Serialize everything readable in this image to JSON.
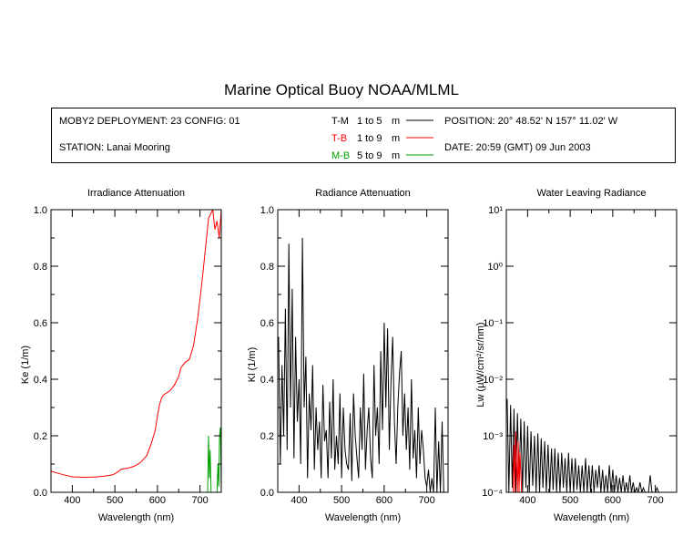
{
  "title": "Marine Optical Buoy NOAA/MLML",
  "info": {
    "deployment": "MOBY2 DEPLOYMENT: 23 CONFIG: 01",
    "station": "STATION: Lanai Mooring",
    "position": "POSITION: 20° 48.52' N   157° 11.02' W",
    "date": "DATE: 20:59 (GMT) 09 Jun 2003"
  },
  "legend": [
    {
      "code": "T-M",
      "range": "1 to 5",
      "unit": "m",
      "color": "#000000"
    },
    {
      "code": "T-B",
      "range": "1 to 9",
      "unit": "m",
      "color": "#ff0000"
    },
    {
      "code": "M-B",
      "range": "5 to 9",
      "unit": "m",
      "color": "#00a000"
    }
  ],
  "chart_data": [
    {
      "type": "line",
      "title": "Irradiance Attenuation",
      "xlabel": "Wavelength (nm)",
      "ylabel": "Ke  (1/m)",
      "xlim": [
        350,
        750
      ],
      "ylim": [
        0,
        1.0
      ],
      "xticks": [
        400,
        500,
        600,
        700
      ],
      "yticks": [
        0.0,
        0.2,
        0.4,
        0.6,
        0.8,
        1.0
      ],
      "ytick_labels": [
        "0.0",
        "0.2",
        "0.4",
        "0.6",
        "0.8",
        "1.0"
      ],
      "series": [
        {
          "name": "T-B",
          "color": "#ff0000",
          "x": [
            350,
            360,
            380,
            400,
            430,
            460,
            480,
            495,
            505,
            515,
            530,
            545,
            560,
            575,
            585,
            595,
            600,
            605,
            610,
            615,
            620,
            630,
            640,
            650,
            655,
            665,
            675,
            685,
            695,
            705,
            712,
            720,
            730,
            735,
            740,
            745,
            750
          ],
          "y": [
            0.075,
            0.07,
            0.062,
            0.055,
            0.053,
            0.055,
            0.058,
            0.062,
            0.07,
            0.082,
            0.085,
            0.092,
            0.105,
            0.13,
            0.17,
            0.22,
            0.27,
            0.31,
            0.335,
            0.345,
            0.35,
            0.36,
            0.38,
            0.41,
            0.44,
            0.46,
            0.47,
            0.52,
            0.62,
            0.75,
            0.85,
            0.97,
            1.0,
            0.93,
            0.96,
            0.9,
            1.0
          ]
        },
        {
          "name": "M-B",
          "color": "#00a000",
          "x": [
            718,
            720,
            722,
            724,
            726,
            740,
            742,
            744,
            746,
            748,
            750
          ],
          "y": [
            0.0,
            0.2,
            0.05,
            0.15,
            0.0,
            0.0,
            0.1,
            0.02,
            0.2,
            0.23,
            0.0
          ]
        }
      ]
    },
    {
      "type": "line",
      "title": "Radiance Attenuation",
      "xlabel": "Wavelength (nm)",
      "ylabel": "Kl  (1/m)",
      "xlim": [
        350,
        750
      ],
      "ylim": [
        0,
        1.0
      ],
      "xticks": [
        400,
        500,
        600,
        700
      ],
      "yticks": [
        0.0,
        0.2,
        0.4,
        0.6,
        0.8,
        1.0
      ],
      "ytick_labels": [
        "0.0",
        "0.2",
        "0.4",
        "0.6",
        "0.8",
        "1.0"
      ],
      "series": [
        {
          "name": "T-M",
          "color": "#000000",
          "x": [
            352,
            356,
            360,
            364,
            368,
            372,
            376,
            380,
            384,
            388,
            392,
            396,
            400,
            404,
            408,
            412,
            416,
            420,
            424,
            428,
            432,
            436,
            440,
            444,
            448,
            452,
            456,
            460,
            464,
            468,
            472,
            476,
            480,
            484,
            488,
            492,
            496,
            500,
            504,
            508,
            512,
            516,
            520,
            524,
            528,
            532,
            536,
            540,
            544,
            548,
            552,
            556,
            560,
            564,
            568,
            572,
            576,
            580,
            584,
            588,
            592,
            596,
            600,
            604,
            608,
            612,
            616,
            620,
            624,
            628,
            632,
            636,
            640,
            644,
            648,
            652,
            656,
            660,
            664,
            668,
            672,
            676,
            680,
            684,
            688,
            692,
            696,
            700,
            704,
            708,
            712,
            716,
            720,
            724,
            728,
            732,
            736,
            740
          ],
          "y": [
            0.55,
            0.1,
            0.45,
            0.2,
            0.65,
            0.15,
            0.88,
            0.3,
            0.72,
            0.12,
            0.55,
            0.25,
            0.4,
            0.1,
            0.9,
            0.3,
            0.48,
            0.05,
            0.35,
            0.22,
            0.45,
            0.08,
            0.3,
            0.15,
            0.25,
            0.05,
            0.38,
            0.18,
            0.22,
            0.05,
            0.32,
            0.12,
            0.4,
            0.08,
            0.2,
            0.1,
            0.35,
            0.05,
            0.3,
            0.15,
            0.1,
            0.08,
            0.28,
            0.04,
            0.35,
            0.2,
            0.12,
            0.05,
            0.3,
            0.15,
            0.42,
            0.08,
            0.22,
            0.3,
            0.12,
            0.05,
            0.45,
            0.2,
            0.3,
            0.1,
            0.5,
            0.22,
            0.6,
            0.3,
            0.58,
            0.15,
            0.4,
            0.55,
            0.25,
            0.1,
            0.3,
            0.42,
            0.5,
            0.2,
            0.35,
            0.15,
            0.3,
            0.08,
            0.4,
            0.12,
            0.22,
            0.05,
            0.3,
            0.1,
            0.22,
            0.15,
            0.05,
            0.02,
            0.08,
            0.0,
            0.05,
            0.0,
            0.3,
            0.0,
            0.18,
            0.0,
            0.25,
            0.0
          ]
        }
      ]
    },
    {
      "type": "line",
      "title": "Water Leaving Radiance",
      "xlabel": "Wavelength (nm)",
      "ylabel": "Lw  (μW/cm²/sr/nm)",
      "xlim": [
        350,
        750
      ],
      "ylim": [
        0.0001,
        10
      ],
      "yscale": "log",
      "xticks": [
        400,
        500,
        600,
        700
      ],
      "yticks": [
        0.0001,
        0.001,
        0.01,
        0.1,
        1,
        10
      ],
      "ytick_labels": [
        "10⁻⁴",
        "10⁻³",
        "10⁻²",
        "10⁻¹",
        "10⁰",
        "10¹"
      ],
      "series": [
        {
          "name": "T-M",
          "color": "#000000",
          "x": [
            352,
            356,
            360,
            364,
            368,
            372,
            376,
            380,
            384,
            388,
            392,
            396,
            400,
            404,
            408,
            412,
            416,
            420,
            424,
            428,
            432,
            436,
            440,
            444,
            448,
            452,
            456,
            460,
            464,
            468,
            472,
            476,
            480,
            484,
            488,
            492,
            496,
            500,
            504,
            508,
            512,
            516,
            520,
            524,
            528,
            532,
            536,
            540,
            544,
            548,
            552,
            556,
            560,
            564,
            568,
            572,
            576,
            580,
            584,
            588,
            592,
            596,
            600,
            604,
            608,
            612,
            616,
            620,
            624,
            628,
            632,
            636,
            640,
            644,
            648,
            652,
            656,
            660,
            664,
            668,
            672,
            676,
            680,
            684,
            688,
            692,
            696,
            700,
            704,
            708,
            712,
            716,
            720
          ],
          "y": [
            0.0045,
            0.0001,
            0.0035,
            0.00012,
            0.003,
            0.0001,
            0.0025,
            0.00015,
            0.002,
            0.0001,
            0.0018,
            0.00012,
            0.0015,
            0.0001,
            0.0012,
            0.00013,
            0.001,
            0.0001,
            0.0011,
            0.0001,
            0.0009,
            0.00012,
            0.0008,
            0.0001,
            0.0007,
            0.0001,
            0.0006,
            0.00011,
            0.0006,
            0.0001,
            0.0005,
            0.0001,
            0.0005,
            0.00012,
            0.0004,
            0.0001,
            0.0005,
            0.0001,
            0.0004,
            0.0001,
            0.0004,
            0.00011,
            0.0003,
            0.0001,
            0.0003,
            0.0001,
            0.0004,
            0.0001,
            0.0003,
            0.0001,
            0.0003,
            0.0001,
            0.00025,
            0.00012,
            0.0003,
            0.0001,
            0.00025,
            0.0001,
            0.0002,
            0.0001,
            0.0003,
            0.0001,
            0.00025,
            0.0001,
            0.0002,
            0.0001,
            0.00018,
            0.0001,
            0.0002,
            0.0001,
            0.00015,
            0.0001,
            0.0002,
            0.0001,
            0.00015,
            0.0001,
            0.00012,
            0.0001,
            0.00015,
            0.0001,
            0.00012,
            0.0001,
            0.0001,
            0.0001,
            0.0002,
            0.0001,
            0.0001,
            0.0001,
            0.00012,
            0.0001,
            0.0001,
            0.0001,
            0.0001
          ]
        },
        {
          "name": "T-B",
          "color": "#ff0000",
          "x": [
            366,
            368,
            370,
            372,
            376,
            378,
            380,
            382,
            386
          ],
          "y": [
            0.0001,
            0.0007,
            0.0001,
            0.0012,
            0.0001,
            0.0008,
            0.0001,
            0.0005,
            0.0001
          ]
        }
      ]
    }
  ]
}
